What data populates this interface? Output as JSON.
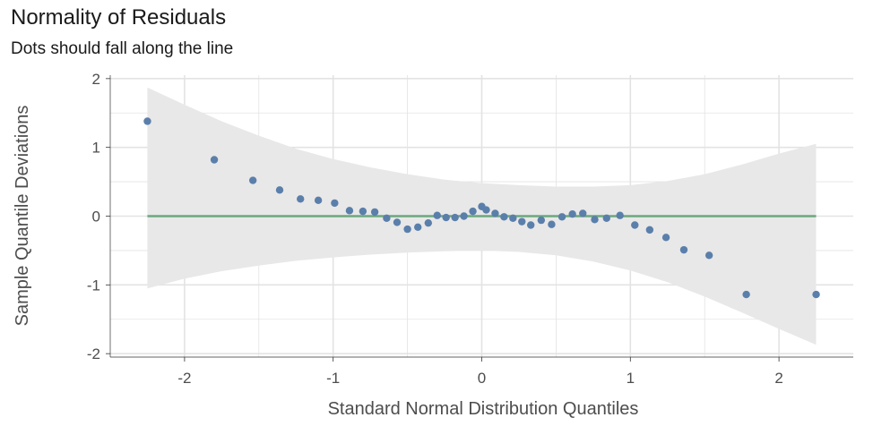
{
  "chart_data": {
    "type": "scatter",
    "title": "Normality of Residuals",
    "subtitle": "Dots should fall along the line",
    "xlabel": "Standard Normal Distribution Quantiles",
    "ylabel": "Sample Quantile Deviations",
    "xlim": [
      -2.5,
      2.5
    ],
    "ylim": [
      -2.05,
      2.05
    ],
    "x_ticks": [
      -2,
      -1,
      0,
      1,
      2
    ],
    "x_tick_labels": [
      "-2",
      "-1",
      "0",
      "1",
      "2"
    ],
    "y_ticks": [
      -2,
      -1,
      0,
      1,
      2
    ],
    "y_tick_labels": [
      "-2",
      "-1",
      "0",
      "1",
      "2"
    ],
    "grid": true,
    "colors": {
      "points": "#5b7fab",
      "line": "#6aa87c",
      "band": "#e8e8e8",
      "grid": "#e3e3e3"
    },
    "reference_line": {
      "y": 0,
      "x_range": [
        -2.25,
        2.25
      ]
    },
    "confidence_band": {
      "x": [
        -2.25,
        -2.0,
        -1.75,
        -1.5,
        -1.25,
        -1.0,
        -0.75,
        -0.5,
        -0.25,
        0.0,
        0.25,
        0.5,
        0.75,
        1.0,
        1.25,
        1.5,
        1.75,
        2.0,
        2.25
      ],
      "upper": [
        1.87,
        1.62,
        1.38,
        1.17,
        0.98,
        0.83,
        0.71,
        0.61,
        0.53,
        0.48,
        0.45,
        0.43,
        0.43,
        0.45,
        0.51,
        0.61,
        0.75,
        0.91,
        1.05
      ],
      "lower": [
        -1.05,
        -0.91,
        -0.8,
        -0.72,
        -0.65,
        -0.6,
        -0.56,
        -0.53,
        -0.51,
        -0.5,
        -0.52,
        -0.57,
        -0.66,
        -0.79,
        -0.96,
        -1.17,
        -1.4,
        -1.64,
        -1.87
      ]
    },
    "points": {
      "x": [
        -2.25,
        -1.8,
        -1.54,
        -1.36,
        -1.22,
        -1.1,
        -0.99,
        -0.89,
        -0.8,
        -0.72,
        -0.64,
        -0.57,
        -0.5,
        -0.43,
        -0.36,
        -0.3,
        -0.24,
        -0.18,
        -0.12,
        -0.06,
        0.0,
        0.03,
        0.09,
        0.15,
        0.21,
        0.27,
        0.33,
        0.4,
        0.47,
        0.54,
        0.61,
        0.68,
        0.76,
        0.84,
        0.93,
        1.03,
        1.13,
        1.24,
        1.36,
        1.53,
        1.78,
        2.25
      ],
      "y": [
        1.38,
        0.82,
        0.52,
        0.38,
        0.25,
        0.23,
        0.19,
        0.08,
        0.07,
        0.06,
        -0.03,
        -0.09,
        -0.19,
        -0.16,
        -0.1,
        0.01,
        -0.02,
        -0.02,
        0.0,
        0.07,
        0.14,
        0.09,
        0.04,
        -0.01,
        -0.03,
        -0.08,
        -0.13,
        -0.06,
        -0.12,
        -0.01,
        0.03,
        0.04,
        -0.05,
        -0.03,
        0.01,
        -0.13,
        -0.2,
        -0.31,
        -0.49,
        -0.57,
        -1.14,
        -1.14
      ]
    }
  }
}
